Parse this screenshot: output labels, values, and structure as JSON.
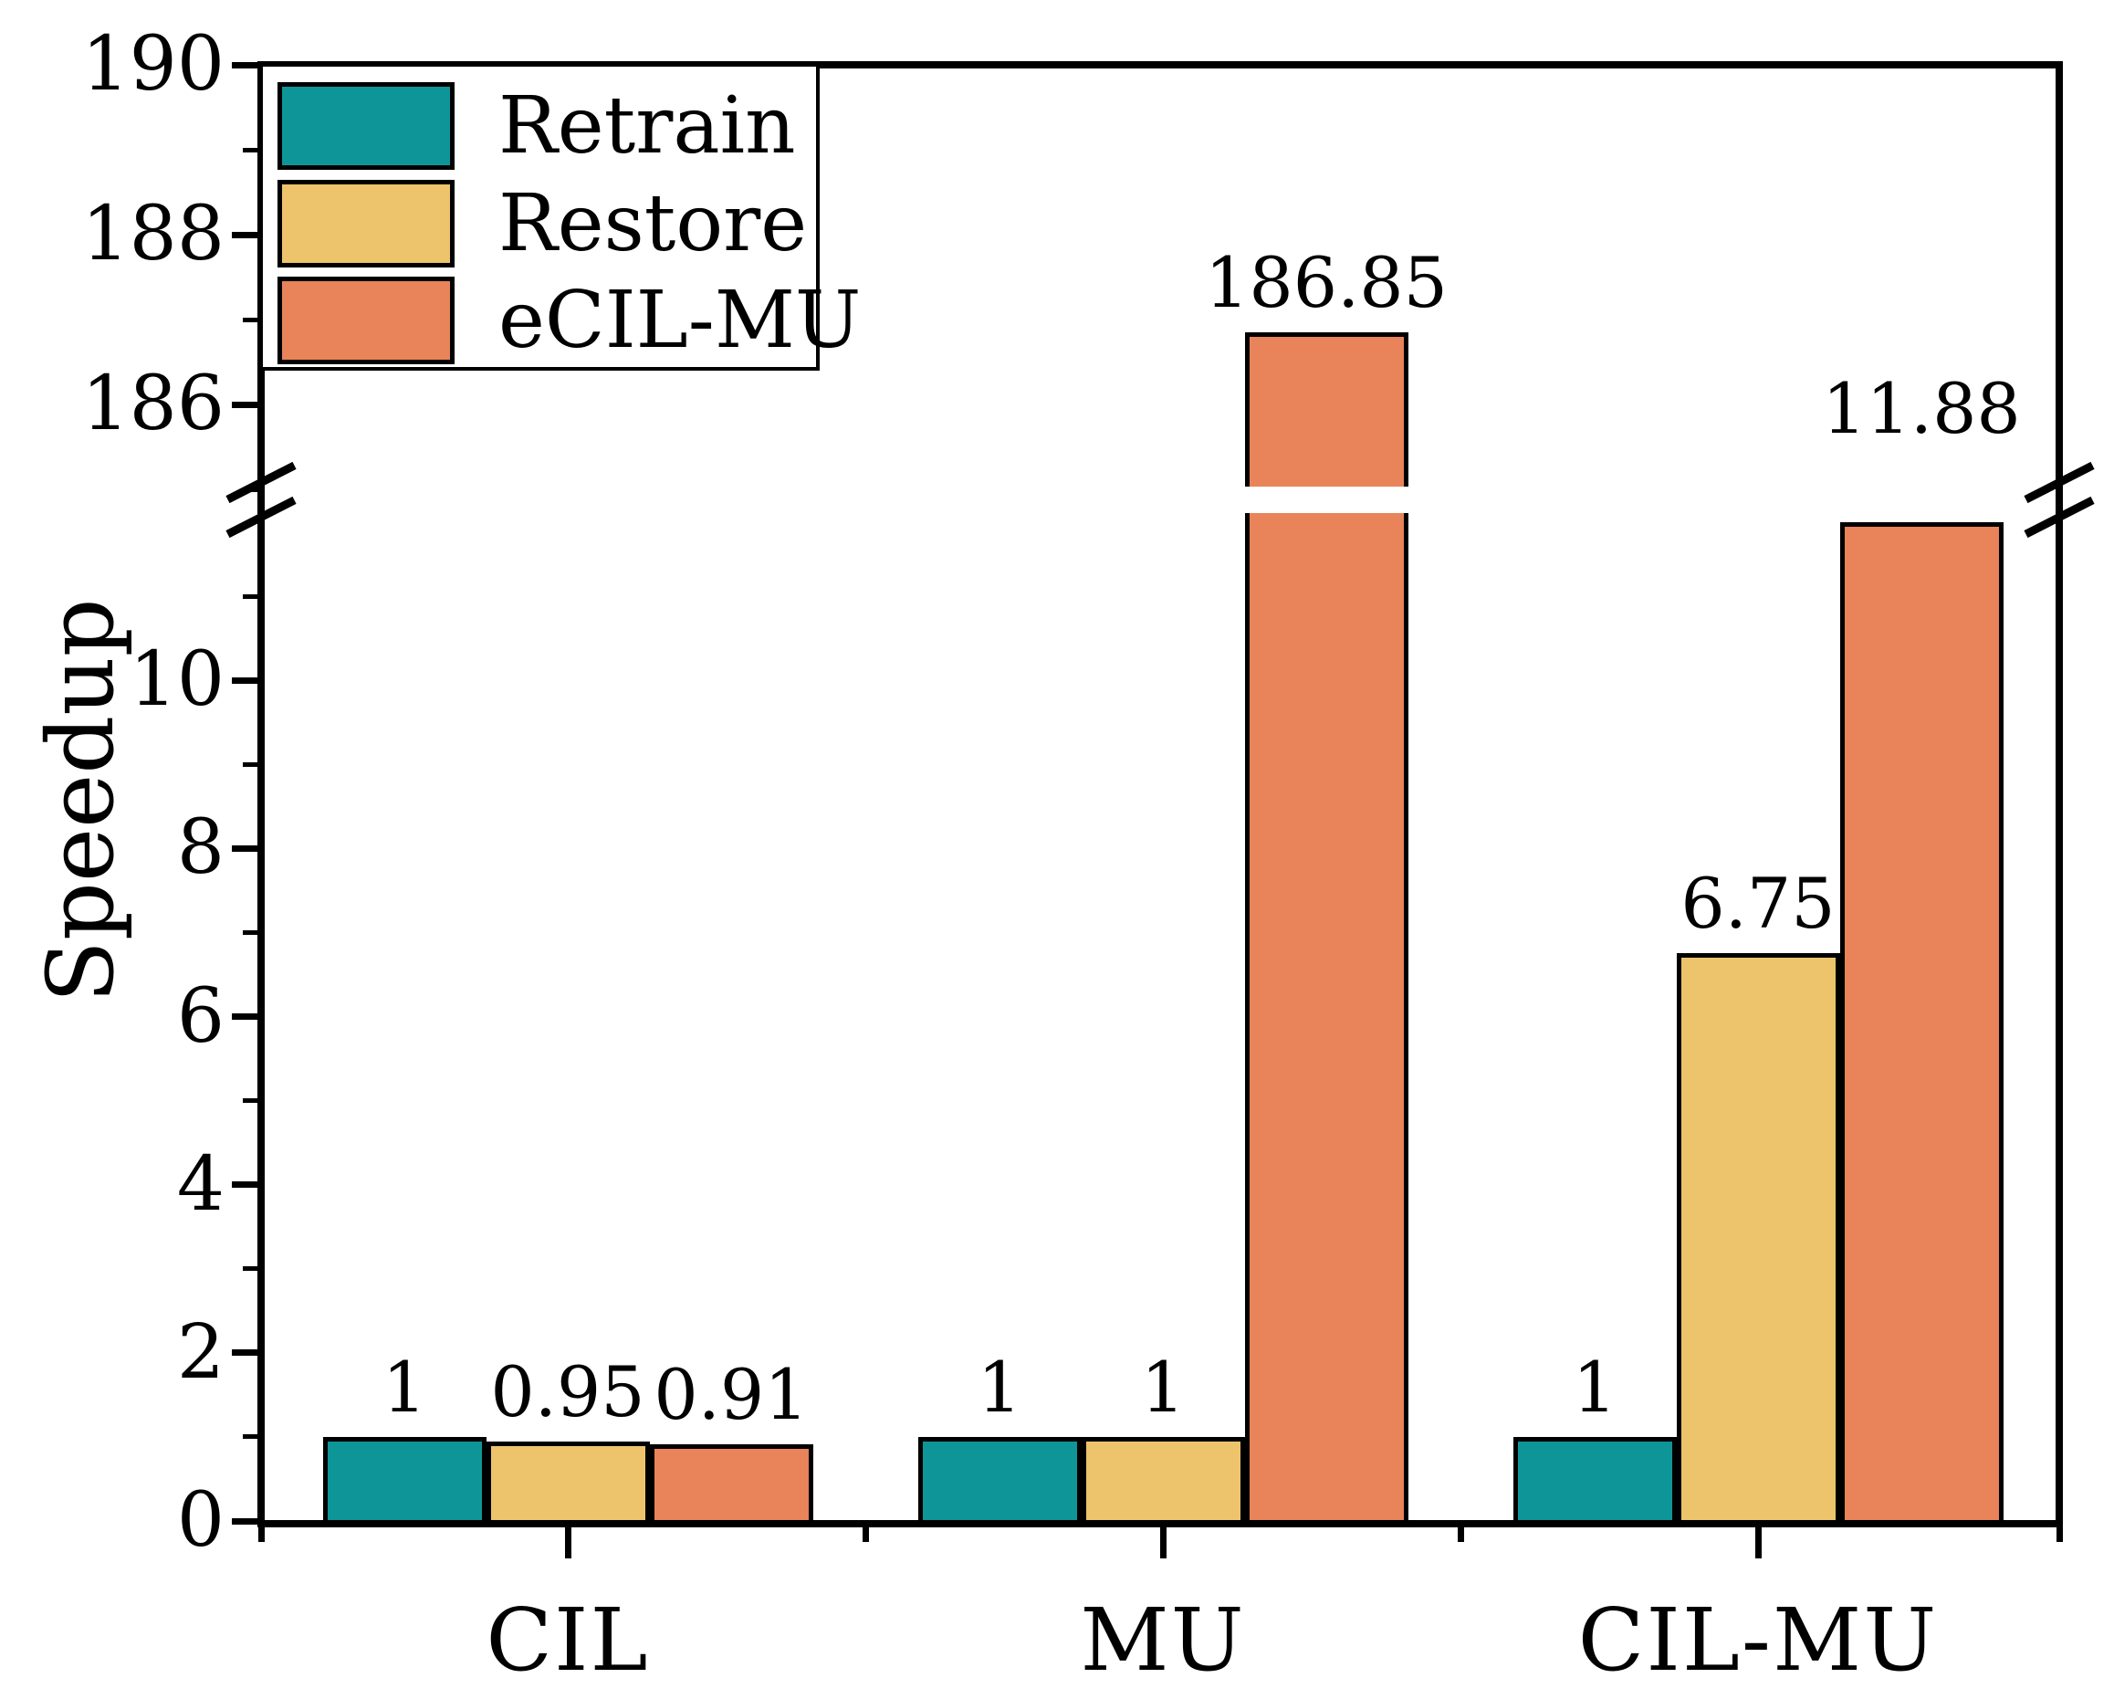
{
  "figure": {
    "background": "#ffffff"
  },
  "chart_data": {
    "type": "bar",
    "title": "",
    "ylabel": "Speedup",
    "xlabel": "",
    "categories": [
      "CIL",
      "MU",
      "CIL-MU"
    ],
    "series": [
      {
        "name": "Retrain",
        "color": "#0E9598",
        "values": [
          1,
          1,
          1
        ],
        "labels": [
          "1",
          "1",
          "1"
        ]
      },
      {
        "name": "Restore",
        "color": "#EDC46C",
        "values": [
          0.95,
          1,
          6.75
        ],
        "labels": [
          "0.95",
          "1",
          "6.75"
        ]
      },
      {
        "name": "eCIL-MU",
        "color": "#E8835A",
        "values": [
          0.91,
          186.85,
          11.88
        ],
        "labels": [
          "0.91",
          "186.85",
          "11.88"
        ]
      }
    ],
    "bar_edge_color": "#000000",
    "broken_y_axis": {
      "lower": {
        "range": [
          0,
          12
        ],
        "major_ticks": [
          0,
          2,
          4,
          6,
          8,
          10
        ],
        "minor_ticks": [
          1,
          3,
          5,
          7,
          9,
          11
        ]
      },
      "upper": {
        "range": [
          185,
          190
        ],
        "major_ticks": [
          186,
          188,
          190
        ],
        "minor_ticks": [
          185,
          187,
          189
        ]
      }
    },
    "legend": {
      "position": "upper-left",
      "entries": [
        "Retrain",
        "Restore",
        "eCIL-MU"
      ]
    },
    "grid": false,
    "axis_color": "#000000"
  }
}
